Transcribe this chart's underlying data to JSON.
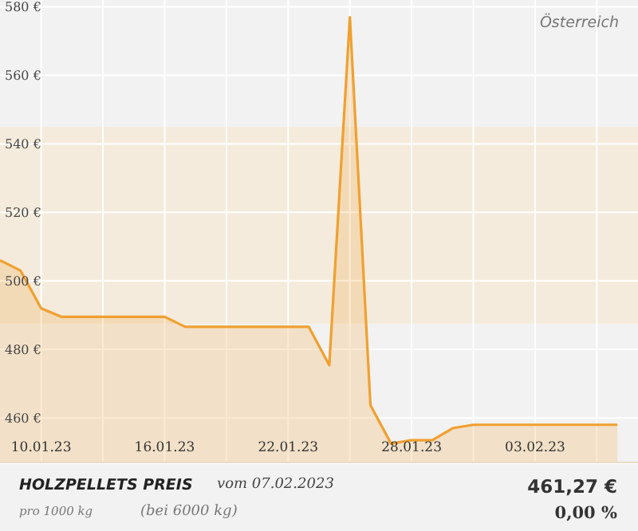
{
  "chart_data": {
    "type": "area",
    "title": "HOLZPELLETS PREIS",
    "subtitle": "vom 07.02.2023",
    "annotations": [
      "Österreich",
      "pro 1000 kg",
      "(bei 6000 kg)",
      "461,27 €",
      "0,00 %"
    ],
    "x": [
      "2023-01-08",
      "2023-01-09",
      "2023-01-10",
      "2023-01-11",
      "2023-01-16",
      "2023-01-17",
      "2023-01-23",
      "2023-01-24",
      "2023-01-25",
      "2023-01-26",
      "2023-01-27",
      "2023-01-28",
      "2023-01-29",
      "2023-01-30",
      "2023-01-31",
      "2023-02-07"
    ],
    "series": [
      {
        "color": "#f0a030",
        "values": [
          506,
          503,
          492,
          489.5,
          489.5,
          486.6,
          486.6,
          475.4,
          577,
          463.7,
          452.5,
          453.5,
          453.5,
          457,
          458,
          458
        ]
      }
    ],
    "xlim": [
      "2023-01-08",
      "2023-02-08"
    ],
    "xticks": [
      {
        "value": "2023-01-10",
        "label": "10.01.23"
      },
      {
        "value": "2023-01-13",
        "label": null
      },
      {
        "value": "2023-01-16",
        "label": "16.01.23"
      },
      {
        "value": "2023-01-19",
        "label": null
      },
      {
        "value": "2023-01-22",
        "label": "22.01.23"
      },
      {
        "value": "2023-01-25",
        "label": null
      },
      {
        "value": "2023-01-28",
        "label": "28.01.23"
      },
      {
        "value": "2023-01-31",
        "label": null
      },
      {
        "value": "2023-02-03",
        "label": "03.02.23"
      },
      {
        "value": "2023-02-06",
        "label": null
      }
    ],
    "ylim": [
      447,
      582
    ],
    "yticks": [
      {
        "value": 460,
        "label": "460 €"
      },
      {
        "value": 480,
        "label": "480 €"
      },
      {
        "value": 500,
        "label": "500 €"
      },
      {
        "value": 520,
        "label": "520 €"
      },
      {
        "value": 540,
        "label": "540 €"
      },
      {
        "value": 560,
        "label": "560 €"
      },
      {
        "value": 580,
        "label": "580 €"
      }
    ],
    "bands": [
      {
        "axis": "y",
        "from": 487.5,
        "to": 545,
        "color": "#f4ebdc"
      }
    ],
    "grid": true,
    "marker": "none",
    "line_style": "solid"
  }
}
